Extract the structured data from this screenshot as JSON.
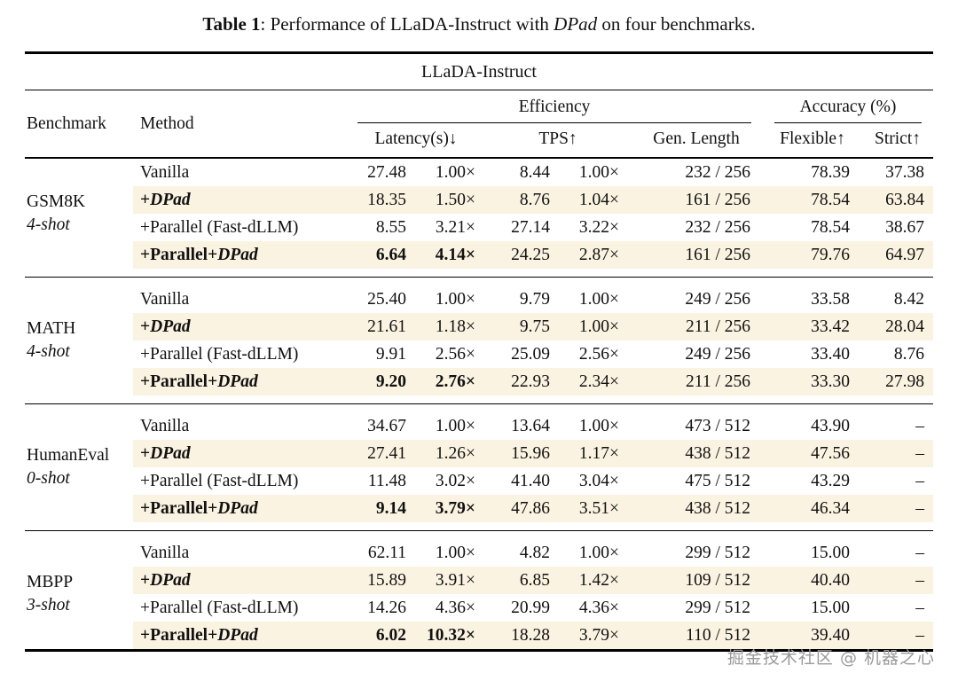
{
  "caption": {
    "label": "Table 1",
    "pre": ": Performance of LLaDA-Instruct with ",
    "italic": "DPad",
    "post": " on four benchmarks."
  },
  "table": {
    "model_header": "LLaDA-Instruct",
    "col_benchmark": "Benchmark",
    "col_method": "Method",
    "group_efficiency": "Efficiency",
    "group_accuracy": "Accuracy (%)",
    "sub_latency": "Latency(s)↓",
    "sub_tps": "TPS↑",
    "sub_genlen": "Gen. Length",
    "sub_flexible": "Flexible↑",
    "sub_strict": "Strict↑",
    "groups": [
      {
        "benchmark": "GSM8K",
        "shot": "4-shot",
        "rows": [
          {
            "method": "Vanilla",
            "dpad": "",
            "latency": "27.48",
            "lat_speed": "1.00×",
            "tps": "8.44",
            "tps_speed": "1.00×",
            "genlen": "232 / 256",
            "flexible": "78.39",
            "strict": "37.38",
            "highlight": false,
            "bold": false
          },
          {
            "method": "+",
            "dpad": "DPad",
            "latency": "18.35",
            "lat_speed": "1.50×",
            "tps": "8.76",
            "tps_speed": "1.04×",
            "genlen": "161 / 256",
            "flexible": "78.54",
            "strict": "63.84",
            "highlight": true,
            "bold": false
          },
          {
            "method": "+Parallel (Fast-dLLM)",
            "dpad": "",
            "latency": "8.55",
            "lat_speed": "3.21×",
            "tps": "27.14",
            "tps_speed": "3.22×",
            "genlen": "232 / 256",
            "flexible": "78.54",
            "strict": "38.67",
            "highlight": false,
            "bold": false
          },
          {
            "method": "+Parallel+",
            "dpad": "DPad",
            "latency": "6.64",
            "lat_speed": "4.14×",
            "tps": "24.25",
            "tps_speed": "2.87×",
            "genlen": "161 / 256",
            "flexible": "79.76",
            "strict": "64.97",
            "highlight": true,
            "bold": true
          }
        ]
      },
      {
        "benchmark": "MATH",
        "shot": "4-shot",
        "rows": [
          {
            "method": "Vanilla",
            "dpad": "",
            "latency": "25.40",
            "lat_speed": "1.00×",
            "tps": "9.79",
            "tps_speed": "1.00×",
            "genlen": "249 / 256",
            "flexible": "33.58",
            "strict": "8.42",
            "highlight": false,
            "bold": false
          },
          {
            "method": "+",
            "dpad": "DPad",
            "latency": "21.61",
            "lat_speed": "1.18×",
            "tps": "9.75",
            "tps_speed": "1.00×",
            "genlen": "211 / 256",
            "flexible": "33.42",
            "strict": "28.04",
            "highlight": true,
            "bold": false
          },
          {
            "method": "+Parallel (Fast-dLLM)",
            "dpad": "",
            "latency": "9.91",
            "lat_speed": "2.56×",
            "tps": "25.09",
            "tps_speed": "2.56×",
            "genlen": "249 / 256",
            "flexible": "33.40",
            "strict": "8.76",
            "highlight": false,
            "bold": false
          },
          {
            "method": "+Parallel+",
            "dpad": "DPad",
            "latency": "9.20",
            "lat_speed": "2.76×",
            "tps": "22.93",
            "tps_speed": "2.34×",
            "genlen": "211 / 256",
            "flexible": "33.30",
            "strict": "27.98",
            "highlight": true,
            "bold": true
          }
        ]
      },
      {
        "benchmark": "HumanEval",
        "shot": "0-shot",
        "rows": [
          {
            "method": "Vanilla",
            "dpad": "",
            "latency": "34.67",
            "lat_speed": "1.00×",
            "tps": "13.64",
            "tps_speed": "1.00×",
            "genlen": "473 / 512",
            "flexible": "43.90",
            "strict": "–",
            "highlight": false,
            "bold": false
          },
          {
            "method": "+",
            "dpad": "DPad",
            "latency": "27.41",
            "lat_speed": "1.26×",
            "tps": "15.96",
            "tps_speed": "1.17×",
            "genlen": "438 / 512",
            "flexible": "47.56",
            "strict": "–",
            "highlight": true,
            "bold": false
          },
          {
            "method": "+Parallel (Fast-dLLM)",
            "dpad": "",
            "latency": "11.48",
            "lat_speed": "3.02×",
            "tps": "41.40",
            "tps_speed": "3.04×",
            "genlen": "475 / 512",
            "flexible": "43.29",
            "strict": "–",
            "highlight": false,
            "bold": false
          },
          {
            "method": "+Parallel+",
            "dpad": "DPad",
            "latency": "9.14",
            "lat_speed": "3.79×",
            "tps": "47.86",
            "tps_speed": "3.51×",
            "genlen": "438 / 512",
            "flexible": "46.34",
            "strict": "–",
            "highlight": true,
            "bold": true
          }
        ]
      },
      {
        "benchmark": "MBPP",
        "shot": "3-shot",
        "rows": [
          {
            "method": "Vanilla",
            "dpad": "",
            "latency": "62.11",
            "lat_speed": "1.00×",
            "tps": "4.82",
            "tps_speed": "1.00×",
            "genlen": "299 / 512",
            "flexible": "15.00",
            "strict": "–",
            "highlight": false,
            "bold": false
          },
          {
            "method": "+",
            "dpad": "DPad",
            "latency": "15.89",
            "lat_speed": "3.91×",
            "tps": "6.85",
            "tps_speed": "1.42×",
            "genlen": "109 / 512",
            "flexible": "40.40",
            "strict": "–",
            "highlight": true,
            "bold": false
          },
          {
            "method": "+Parallel (Fast-dLLM)",
            "dpad": "",
            "latency": "14.26",
            "lat_speed": "4.36×",
            "tps": "20.99",
            "tps_speed": "4.36×",
            "genlen": "299 / 512",
            "flexible": "15.00",
            "strict": "–",
            "highlight": false,
            "bold": false
          },
          {
            "method": "+Parallel+",
            "dpad": "DPad",
            "latency": "6.02",
            "lat_speed": "10.32×",
            "tps": "18.28",
            "tps_speed": "3.79×",
            "genlen": "110 / 512",
            "flexible": "39.40",
            "strict": "–",
            "highlight": true,
            "bold": true
          }
        ]
      }
    ]
  },
  "watermark": "掘金技术社区 @ 机器之心"
}
